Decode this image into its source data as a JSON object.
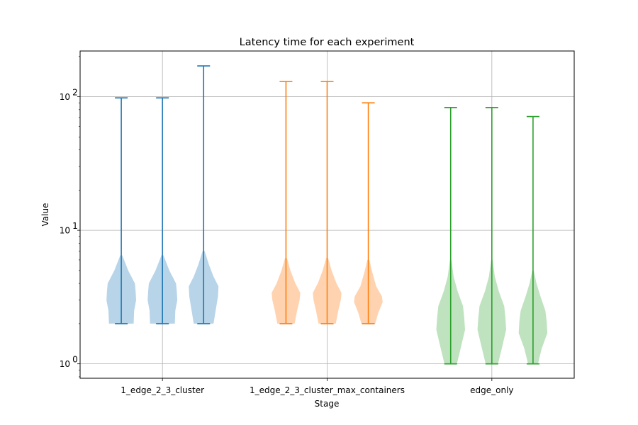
{
  "chart_data": {
    "type": "violin",
    "title": "Latency time for each experiment",
    "xlabel": "Stage",
    "ylabel": "Value",
    "yscale": "log",
    "ylim": [
      0.78,
      220
    ],
    "grid": true,
    "y_ticks": [
      {
        "value": 1,
        "mantissa": "10",
        "exp": "0"
      },
      {
        "value": 10,
        "mantissa": "10",
        "exp": "1"
      },
      {
        "value": 100,
        "mantissa": "10",
        "exp": "2"
      }
    ],
    "groups": [
      {
        "label": "1_edge_2_3_cluster",
        "color": "#1f77b4",
        "fill": "#b7d4e8"
      },
      {
        "label": "1_edge_2_3_cluster_max_containers",
        "color": "#ff7f0e",
        "fill": "#ffd3b0"
      },
      {
        "label": "edge_only",
        "color": "#2ca02c",
        "fill": "#bfe2bf"
      }
    ],
    "violins": [
      {
        "group": 0,
        "pos": 1,
        "min": 2,
        "max": 98,
        "profile": [
          [
            2,
            0.5
          ],
          [
            2.5,
            0.52
          ],
          [
            3,
            0.6
          ],
          [
            3.5,
            0.58
          ],
          [
            4,
            0.55
          ],
          [
            5,
            0.28
          ],
          [
            6.5,
            0.04
          ]
        ]
      },
      {
        "group": 0,
        "pos": 2,
        "min": 2,
        "max": 98,
        "profile": [
          [
            2,
            0.5
          ],
          [
            2.5,
            0.52
          ],
          [
            3,
            0.6
          ],
          [
            3.5,
            0.58
          ],
          [
            4,
            0.55
          ],
          [
            5,
            0.28
          ],
          [
            6.5,
            0.04
          ]
        ]
      },
      {
        "group": 0,
        "pos": 3,
        "min": 2,
        "max": 170,
        "profile": [
          [
            2,
            0.4
          ],
          [
            2.6,
            0.5
          ],
          [
            3.2,
            0.58
          ],
          [
            3.8,
            0.6
          ],
          [
            4.5,
            0.4
          ],
          [
            5.5,
            0.22
          ],
          [
            7,
            0.04
          ]
        ]
      },
      {
        "group": 1,
        "pos": 5,
        "min": 2,
        "max": 130,
        "profile": [
          [
            2,
            0.35
          ],
          [
            2.5,
            0.45
          ],
          [
            3,
            0.55
          ],
          [
            3.4,
            0.58
          ],
          [
            4,
            0.38
          ],
          [
            5,
            0.18
          ],
          [
            6.2,
            0.04
          ]
        ]
      },
      {
        "group": 1,
        "pos": 6,
        "min": 2,
        "max": 130,
        "profile": [
          [
            2,
            0.35
          ],
          [
            2.5,
            0.45
          ],
          [
            3,
            0.55
          ],
          [
            3.4,
            0.58
          ],
          [
            4,
            0.38
          ],
          [
            5,
            0.18
          ],
          [
            6.2,
            0.04
          ]
        ]
      },
      {
        "group": 1,
        "pos": 7,
        "min": 2,
        "max": 90,
        "profile": [
          [
            2,
            0.28
          ],
          [
            2.4,
            0.4
          ],
          [
            2.9,
            0.58
          ],
          [
            3.2,
            0.55
          ],
          [
            3.8,
            0.32
          ],
          [
            5,
            0.14
          ],
          [
            6,
            0.04
          ]
        ]
      },
      {
        "group": 2,
        "pos": 9,
        "min": 1,
        "max": 83,
        "profile": [
          [
            1,
            0.25
          ],
          [
            1.3,
            0.4
          ],
          [
            1.8,
            0.58
          ],
          [
            2.2,
            0.55
          ],
          [
            2.7,
            0.5
          ],
          [
            3.5,
            0.28
          ],
          [
            4.5,
            0.12
          ],
          [
            6,
            0.03
          ]
        ]
      },
      {
        "group": 2,
        "pos": 10,
        "min": 1,
        "max": 83,
        "profile": [
          [
            1,
            0.25
          ],
          [
            1.3,
            0.4
          ],
          [
            1.8,
            0.58
          ],
          [
            2.2,
            0.55
          ],
          [
            2.7,
            0.5
          ],
          [
            3.5,
            0.28
          ],
          [
            4.5,
            0.12
          ],
          [
            6,
            0.03
          ]
        ]
      },
      {
        "group": 2,
        "pos": 11,
        "min": 1,
        "max": 71,
        "profile": [
          [
            1,
            0.2
          ],
          [
            1.3,
            0.35
          ],
          [
            1.7,
            0.58
          ],
          [
            2.1,
            0.55
          ],
          [
            2.5,
            0.5
          ],
          [
            3.2,
            0.3
          ],
          [
            4,
            0.14
          ],
          [
            5,
            0.03
          ]
        ]
      }
    ],
    "x_ticks": [
      {
        "pos": 2,
        "label": "1_edge_2_3_cluster"
      },
      {
        "pos": 6,
        "label": "1_edge_2_3_cluster_max_containers"
      },
      {
        "pos": 10,
        "label": "edge_only"
      }
    ],
    "xlim": [
      0,
      12
    ]
  }
}
